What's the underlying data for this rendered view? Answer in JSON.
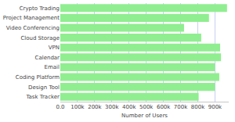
{
  "chart_data": {
    "type": "bar",
    "orientation": "horizontal",
    "categories": [
      "Crypto Trading",
      "Project Management",
      "Video Conferencing",
      "Cloud Storage",
      "VPN",
      "Calendar",
      "Email",
      "Coding Platform",
      "Design Tool",
      "Task Tracker"
    ],
    "values": [
      970000,
      865000,
      720000,
      820000,
      930000,
      935000,
      900000,
      925000,
      900000,
      805000
    ],
    "color": "#90ee90",
    "x_label": "Number of Users",
    "xlim": [
      0,
      980000
    ],
    "xticks": [
      {
        "value": 0,
        "label": "0.0"
      },
      {
        "value": 100000,
        "label": "100k"
      },
      {
        "value": 200000,
        "label": "200k"
      },
      {
        "value": 300000,
        "label": "300k"
      },
      {
        "value": 400000,
        "label": "400k"
      },
      {
        "value": 500000,
        "label": "500k"
      },
      {
        "value": 600000,
        "label": "600k"
      },
      {
        "value": 700000,
        "label": "700k"
      },
      {
        "value": 800000,
        "label": "800k"
      },
      {
        "value": 900000,
        "label": "900k"
      }
    ],
    "grid": true
  }
}
